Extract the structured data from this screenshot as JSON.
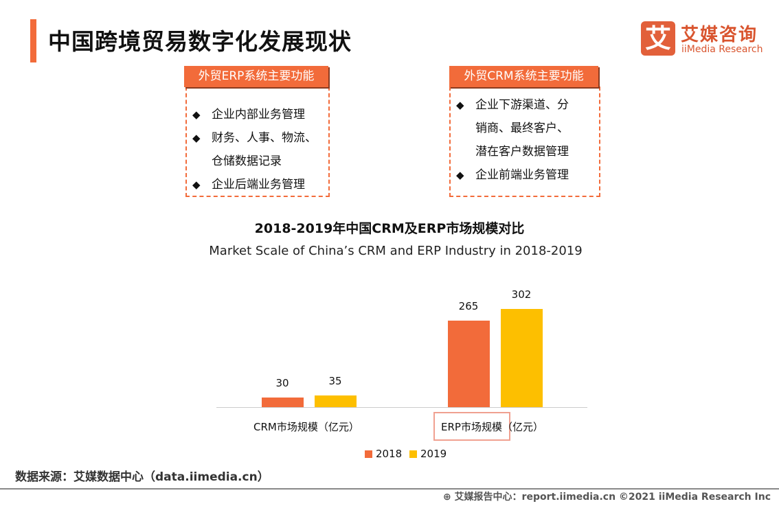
{
  "header": {
    "title": "中国跨境贸易数字化发展现状",
    "logo_mark": "艾",
    "logo_cn": "艾媒咨询",
    "logo_en": "iiMedia Research"
  },
  "erp_box": {
    "title": "外贸ERP系统主要功能",
    "items": [
      [
        "企业内部业务管理"
      ],
      [
        "财务、人事、物流、",
        "仓储数据记录"
      ],
      [
        "企业后端业务管理"
      ]
    ]
  },
  "crm_box": {
    "title": "外贸CRM系统主要功能",
    "items": [
      [
        "企业下游渠道、分",
        "销商、最终客户、",
        "潜在客户数据管理"
      ],
      [
        "企业前端业务管理"
      ]
    ]
  },
  "bullet": "◆",
  "chart_data": {
    "type": "bar",
    "title": "2018-2019年中国CRM及ERP市场规模对比",
    "subtitle": "Market Scale of China’s CRM and ERP Industry in 2018-2019",
    "categories": [
      "CRM市场规模（亿元）",
      "ERP市场规模（亿元）"
    ],
    "series": [
      {
        "name": "2018",
        "color": "#f26b3a",
        "values": [
          30,
          265
        ]
      },
      {
        "name": "2019",
        "color": "#fdbf00",
        "values": [
          35,
          302
        ]
      }
    ],
    "ylim": [
      0,
      320
    ],
    "unit": "亿元",
    "legend": "bottom"
  },
  "source": "数据来源：艾媒数据中心（data.iimedia.cn）",
  "footer": "艾媒报告中心：report.iimedia.cn   ©2021  iiMedia Research  Inc"
}
